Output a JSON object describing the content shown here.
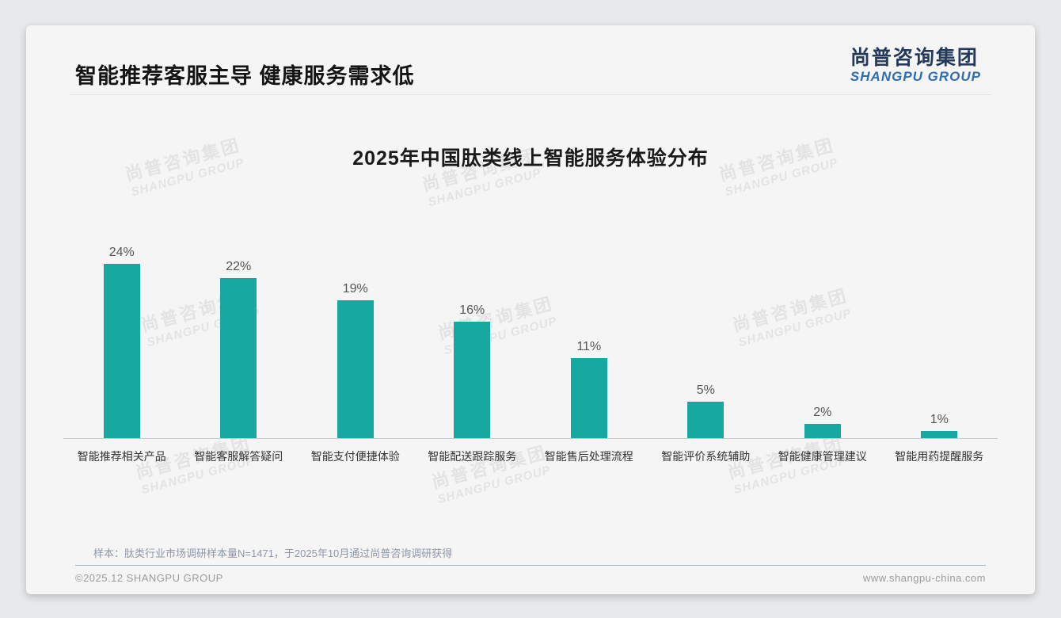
{
  "header": {
    "title": "智能推荐客服主导 健康服务需求低",
    "logo_cn": "尚普咨询集团",
    "logo_en": "SHANGPU GROUP"
  },
  "watermark": {
    "line_cn": "尚普咨询集团",
    "line_en": "SHANGPU GROUP"
  },
  "chart_data": {
    "type": "bar",
    "title": "2025年中国肽类线上智能服务体验分布",
    "categories": [
      "智能推荐相关产品",
      "智能客服解答疑问",
      "智能支付便捷体验",
      "智能配送跟踪服务",
      "智能售后处理流程",
      "智能评价系统辅助",
      "智能健康管理建议",
      "智能用药提醒服务"
    ],
    "values": [
      24,
      22,
      19,
      16,
      11,
      5,
      2,
      1
    ],
    "value_labels": [
      "24%",
      "22%",
      "19%",
      "16%",
      "11%",
      "5%",
      "2%",
      "1%"
    ],
    "bar_color": "#17a8a2",
    "xlabel": "",
    "ylabel": "",
    "ylim": [
      0,
      26
    ],
    "grid": false,
    "legend": false,
    "value_label_position": "above-bars"
  },
  "footer": {
    "sample_note": "样本：肽类行业市场调研样本量N=1471，于2025年10月通过尚普咨询调研获得",
    "copyright": "©2025.12 SHANGPU GROUP",
    "website": "www.shangpu-china.com"
  }
}
